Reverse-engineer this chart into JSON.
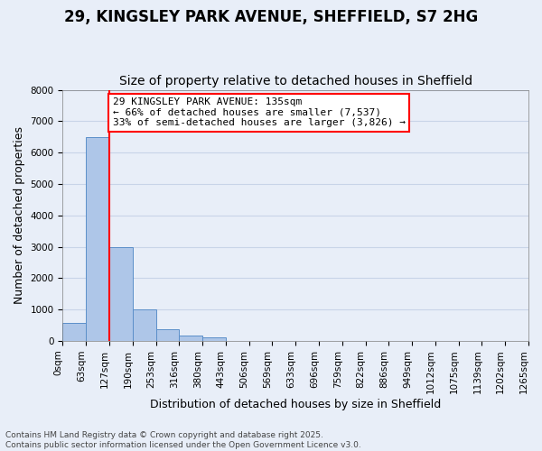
{
  "title_line1": "29, KINGSLEY PARK AVENUE, SHEFFIELD, S7 2HG",
  "title_line2": "Size of property relative to detached houses in Sheffield",
  "xlabel": "Distribution of detached houses by size in Sheffield",
  "ylabel": "Number of detached properties",
  "bar_values": [
    580,
    6480,
    3000,
    1000,
    380,
    170,
    100,
    0,
    0,
    0,
    0,
    0,
    0,
    0,
    0,
    0,
    0,
    0,
    0,
    0
  ],
  "bar_labels": [
    "0sqm",
    "63sqm",
    "127sqm",
    "190sqm",
    "253sqm",
    "316sqm",
    "380sqm",
    "443sqm",
    "506sqm",
    "569sqm",
    "633sqm",
    "696sqm",
    "759sqm",
    "822sqm",
    "886sqm",
    "949sqm",
    "1012sqm",
    "1075sqm",
    "1139sqm",
    "1202sqm",
    "1265sqm"
  ],
  "bar_color": "#aec6e8",
  "bar_edge_color": "#5b8fc9",
  "grid_color": "#c8d4e8",
  "background_color": "#e8eef8",
  "annotation_text": "29 KINGSLEY PARK AVENUE: 135sqm\n← 66% of detached houses are smaller (7,537)\n33% of semi-detached houses are larger (3,826) →",
  "annotation_box_color": "white",
  "annotation_border_color": "red",
  "vline_x": 2.0,
  "vline_color": "red",
  "ylim": [
    0,
    8000
  ],
  "yticks": [
    0,
    1000,
    2000,
    3000,
    4000,
    5000,
    6000,
    7000,
    8000
  ],
  "footer_text": "Contains HM Land Registry data © Crown copyright and database right 2025.\nContains public sector information licensed under the Open Government Licence v3.0.",
  "title_fontsize": 12,
  "subtitle_fontsize": 10,
  "axis_label_fontsize": 9,
  "tick_fontsize": 7.5,
  "annotation_fontsize": 8
}
